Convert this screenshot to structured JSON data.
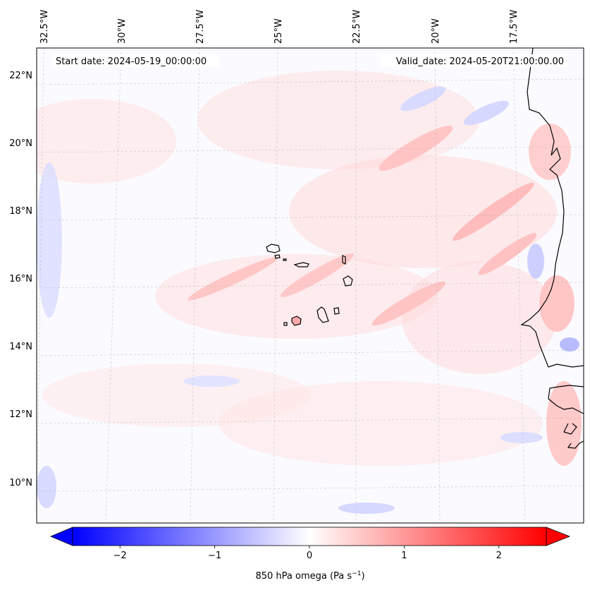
{
  "header": {
    "start_label": "Start date: 2024-05-19_00:00:00",
    "valid_label": "Valid_date: 2024-05-20T21:00:00.00"
  },
  "map": {
    "lon_labels": [
      "32.5°W",
      "30°W",
      "27.5°W",
      "25°W",
      "22.5°W",
      "20°W",
      "17.5°W"
    ],
    "lat_labels": [
      "22°N",
      "20°N",
      "18°N",
      "16°N",
      "14°N",
      "12°N",
      "10°N"
    ],
    "features": [
      "coastline-africa",
      "cape-verde-islands"
    ],
    "colors": {
      "background": "#fbfbff",
      "positive": "#ff0000",
      "negative": "#0000ff",
      "coast": "#000000",
      "grid": "#b0b0b0"
    }
  },
  "colorbar": {
    "min": -2.5,
    "max": 2.5,
    "ticks": [
      -2,
      -1,
      0,
      1,
      2
    ],
    "tick_labels": [
      "−2",
      "−1",
      "0",
      "1",
      "2"
    ],
    "label_prefix": "850 hPa omega (Pa s",
    "label_exp": "−1",
    "label_suffix": ")",
    "extend": "both"
  }
}
